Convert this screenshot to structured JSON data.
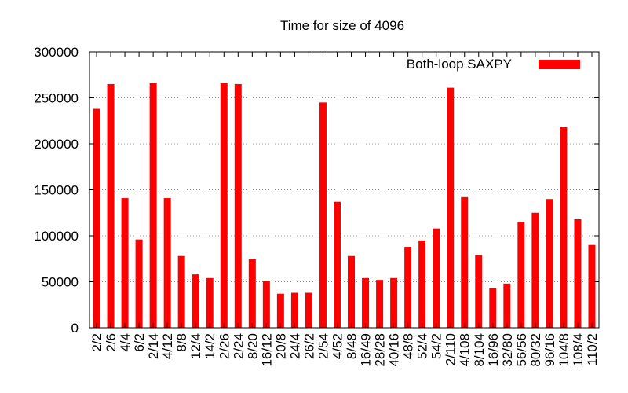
{
  "chart_data": {
    "type": "bar",
    "title": "Time for size of 4096",
    "xlabel": "",
    "ylabel": "",
    "ylim": [
      0,
      300000
    ],
    "yticks": [
      0,
      50000,
      100000,
      150000,
      200000,
      250000,
      300000
    ],
    "grid": "horizontal dotted",
    "legend_position": "top-right",
    "categories": [
      "2/2",
      "2/6",
      "4/4",
      "6/2",
      "2/14",
      "4/12",
      "8/8",
      "12/4",
      "14/2",
      "2/26",
      "2/24",
      "8/20",
      "16/12",
      "20/8",
      "24/4",
      "26/2",
      "2/54",
      "4/52",
      "8/48",
      "16/49",
      "28/28",
      "40/16",
      "48/8",
      "52/4",
      "54/2",
      "2/110",
      "4/108",
      "8/104",
      "16/96",
      "32/80",
      "56/56",
      "80/32",
      "96/16",
      "104/8",
      "108/4",
      "110/2"
    ],
    "series": [
      {
        "name": "Both-loop SAXPY",
        "color": "#ff0000",
        "values": [
          238000,
          265000,
          141000,
          96000,
          266000,
          141000,
          78000,
          58000,
          54000,
          266000,
          265000,
          75000,
          51000,
          37000,
          38000,
          38000,
          245000,
          137000,
          78000,
          54000,
          52000,
          54000,
          88000,
          95000,
          108000,
          261000,
          142000,
          79000,
          43000,
          48000,
          115000,
          125000,
          140000,
          218000,
          118000,
          90000
        ]
      }
    ]
  }
}
